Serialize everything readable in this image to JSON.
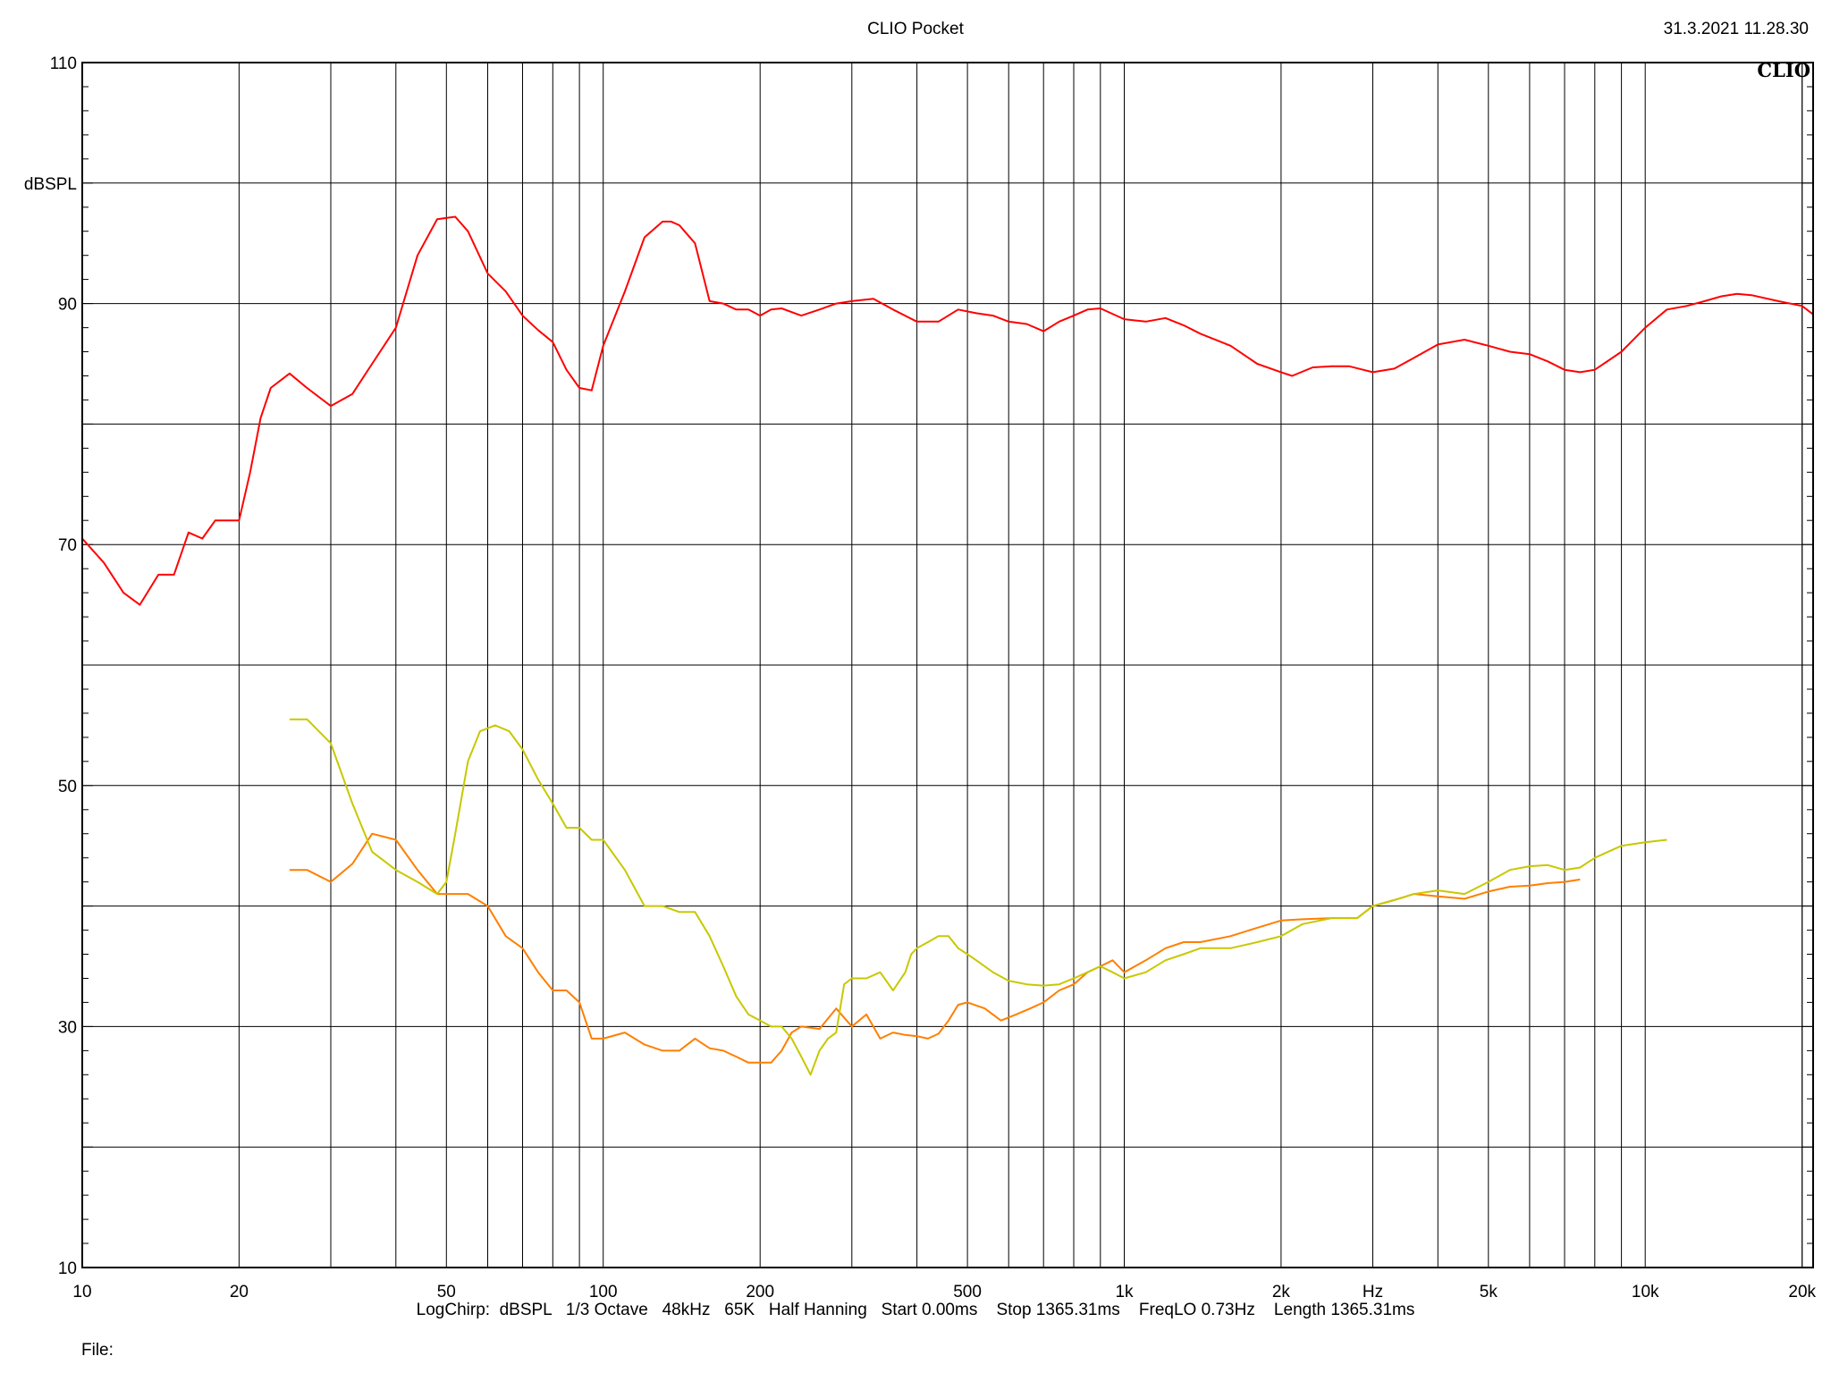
{
  "header": {
    "title": "CLIO Pocket",
    "datetime": "31.3.2021 11.28.30",
    "logo": "CLIO"
  },
  "footer": {
    "settings": "LogChirp:  dBSPL   1/3 Octave   48kHz   65K   Half Hanning   Start 0.00ms    Stop 1365.31ms    FreqLO 0.73Hz    Length 1365.31ms",
    "file_label": "File:"
  },
  "chart_data": {
    "type": "line",
    "title": "CLIO Pocket",
    "xlabel": "Hz",
    "ylabel": "dBSPL",
    "x_scale": "log",
    "xlim": [
      10,
      21000
    ],
    "ylim": [
      10,
      110
    ],
    "x_tick_labels": [
      "10",
      "20",
      "50",
      "100",
      "200",
      "500",
      "1k",
      "2k",
      "Hz",
      "5k",
      "10k",
      "20k"
    ],
    "y_tick_labels": [
      "110",
      "dBSPL",
      "90",
      "70",
      "50",
      "30",
      "10"
    ],
    "grid": true,
    "series": [
      {
        "color": "#ff0000",
        "x": [
          10,
          11,
          12,
          12.9,
          14,
          15,
          16,
          17,
          18,
          19,
          20,
          21,
          22,
          23,
          25,
          27,
          30,
          33,
          36,
          40,
          44,
          48,
          52,
          55,
          60,
          65,
          70,
          75,
          80,
          85,
          90,
          95,
          100,
          110,
          120,
          130,
          135,
          140,
          150,
          160,
          170,
          180,
          190,
          200,
          210,
          220,
          240,
          260,
          280,
          300,
          330,
          360,
          400,
          440,
          480,
          520,
          560,
          600,
          650,
          700,
          750,
          800,
          850,
          900,
          1000,
          1100,
          1200,
          1300,
          1400,
          1600,
          1800,
          2000,
          2100,
          2300,
          2500,
          2700,
          3000,
          3300,
          3600,
          4000,
          4500,
          5000,
          5500,
          6000,
          6500,
          7000,
          7500,
          8000,
          9000,
          10000,
          11000,
          12000,
          13000,
          14000,
          15000,
          16000,
          18000,
          20000,
          21000
        ],
        "values": [
          70.5,
          68.5,
          66.0,
          65.0,
          67.5,
          67.5,
          71.0,
          70.5,
          72.0,
          72.0,
          72.0,
          76.0,
          80.5,
          83.0,
          84.2,
          83.0,
          81.5,
          82.5,
          85.0,
          88.0,
          94.0,
          97.0,
          97.2,
          96.0,
          92.5,
          91.0,
          89.0,
          87.8,
          86.8,
          84.5,
          83.0,
          82.8,
          86.5,
          91.0,
          95.5,
          96.8,
          96.8,
          96.5,
          95.0,
          90.2,
          90.0,
          89.5,
          89.5,
          89.0,
          89.5,
          89.6,
          89.0,
          89.5,
          90.0,
          90.2,
          90.4,
          89.5,
          88.5,
          88.5,
          89.5,
          89.2,
          89.0,
          88.5,
          88.3,
          87.7,
          88.5,
          89.0,
          89.5,
          89.6,
          88.7,
          88.5,
          88.8,
          88.2,
          87.5,
          86.5,
          85.0,
          84.3,
          84.0,
          84.7,
          84.8,
          84.8,
          84.3,
          84.6,
          85.5,
          86.6,
          87.0,
          86.5,
          86.0,
          85.8,
          85.2,
          84.5,
          84.3,
          84.5,
          86.0,
          88.0,
          89.5,
          89.8,
          90.2,
          90.6,
          90.8,
          90.7,
          90.2,
          89.8,
          89.1
        ]
      },
      {
        "color": "#ff7f00",
        "x": [
          25,
          27,
          30,
          33,
          36,
          40,
          44,
          48,
          50,
          55,
          60,
          65,
          70,
          75,
          80,
          85,
          90,
          95,
          100,
          110,
          120,
          130,
          140,
          150,
          160,
          170,
          180,
          190,
          200,
          210,
          220,
          230,
          240,
          260,
          280,
          300,
          320,
          340,
          360,
          380,
          400,
          420,
          440,
          460,
          480,
          500,
          540,
          580,
          620,
          660,
          700,
          750,
          800,
          850,
          900,
          950,
          1000,
          1100,
          1200,
          1300,
          1400,
          1600,
          1800,
          2000,
          2200,
          2500,
          2800,
          3000,
          3300,
          3600,
          4000,
          4500,
          5000,
          5500,
          6000,
          6500,
          7000,
          7500
        ],
        "values": [
          43.0,
          43.0,
          42.0,
          43.5,
          46.0,
          45.5,
          43.0,
          41.0,
          41.0,
          41.0,
          40.0,
          37.5,
          36.5,
          34.5,
          33.0,
          33.0,
          32.0,
          29.0,
          29.0,
          29.5,
          28.5,
          28.0,
          28.0,
          29.0,
          28.2,
          28.0,
          27.5,
          27.0,
          27.0,
          27.0,
          28.0,
          29.5,
          30.0,
          29.8,
          31.5,
          30.0,
          31.0,
          29.0,
          29.5,
          29.3,
          29.2,
          29.0,
          29.4,
          30.5,
          31.8,
          32.0,
          31.5,
          30.5,
          31.0,
          31.5,
          32.0,
          33.0,
          33.5,
          34.5,
          35.0,
          35.5,
          34.5,
          35.5,
          36.5,
          37.0,
          37.0,
          37.5,
          38.2,
          38.8,
          38.9,
          39.0,
          39.0,
          40.0,
          40.5,
          41.0,
          40.8,
          40.6,
          41.2,
          41.6,
          41.7,
          41.9,
          42.0,
          42.2
        ]
      },
      {
        "color": "#c8c800",
        "x": [
          25,
          27,
          30,
          33,
          36,
          40,
          44,
          48,
          50,
          52,
          55,
          58,
          62,
          66,
          70,
          75,
          80,
          85,
          90,
          95,
          100,
          110,
          120,
          130,
          140,
          150,
          160,
          170,
          180,
          190,
          200,
          210,
          220,
          230,
          240,
          250,
          260,
          270,
          280,
          290,
          300,
          320,
          340,
          360,
          380,
          390,
          400,
          420,
          440,
          460,
          480,
          500,
          520,
          560,
          600,
          650,
          700,
          750,
          800,
          850,
          900,
          950,
          1000,
          1100,
          1200,
          1300,
          1400,
          1600,
          1800,
          2000,
          2200,
          2500,
          2800,
          3000,
          3300,
          3600,
          4000,
          4500,
          5000,
          5500,
          6000,
          6500,
          7000,
          7500,
          8000,
          9000,
          10000,
          11000
        ],
        "values": [
          55.5,
          55.5,
          53.5,
          48.5,
          44.5,
          43.0,
          42.0,
          41.0,
          42.0,
          46.0,
          52.0,
          54.5,
          55.0,
          54.5,
          53.0,
          50.5,
          48.5,
          46.5,
          46.5,
          45.5,
          45.5,
          43.0,
          40.0,
          40.0,
          39.5,
          39.5,
          37.5,
          35.0,
          32.5,
          31.0,
          30.5,
          30.0,
          30.0,
          29.0,
          27.5,
          26.0,
          28.0,
          29.0,
          29.5,
          33.5,
          34.0,
          34.0,
          34.5,
          33.0,
          34.5,
          36.0,
          36.5,
          37.0,
          37.5,
          37.5,
          36.5,
          36.0,
          35.5,
          34.5,
          33.8,
          33.5,
          33.4,
          33.5,
          34.0,
          34.5,
          35.0,
          34.5,
          34.0,
          34.5,
          35.5,
          36.0,
          36.5,
          36.5,
          37.0,
          37.5,
          38.5,
          39.0,
          39.0,
          40.0,
          40.5,
          41.0,
          41.3,
          41.0,
          42.0,
          43.0,
          43.3,
          43.4,
          43.0,
          43.2,
          44.0,
          45.0,
          45.3,
          45.5
        ]
      }
    ]
  }
}
